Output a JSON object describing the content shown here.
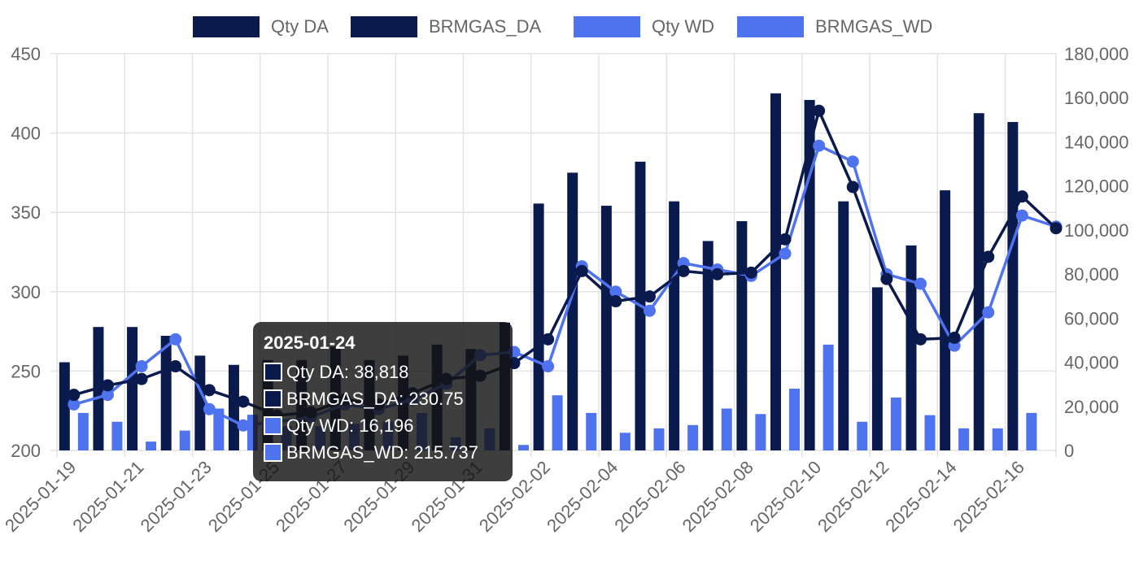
{
  "chart_data": {
    "type": "bar",
    "categories": [
      "2025-01-19",
      "2025-01-20",
      "2025-01-21",
      "2025-01-22",
      "2025-01-23",
      "2025-01-24",
      "2025-01-25",
      "2025-01-26",
      "2025-01-27",
      "2025-01-28",
      "2025-01-29",
      "2025-01-30",
      "2025-01-31",
      "2025-02-01",
      "2025-02-02",
      "2025-02-03",
      "2025-02-04",
      "2025-02-05",
      "2025-02-06",
      "2025-02-07",
      "2025-02-08",
      "2025-02-09",
      "2025-02-10",
      "2025-02-11",
      "2025-02-12",
      "2025-02-13",
      "2025-02-14",
      "2025-02-15",
      "2025-02-16",
      "2025-02-17"
    ],
    "x_tick_labels": [
      "2025-01-19",
      "2025-01-21",
      "2025-01-23",
      "2025-01-25",
      "2025-01-27",
      "2025-01-29",
      "2025-01-31",
      "2025-02-02",
      "2025-02-04",
      "2025-02-06",
      "2025-02-08",
      "2025-02-10",
      "2025-02-12",
      "2025-02-14",
      "2025-02-16"
    ],
    "series": [
      {
        "name": "Qty DA",
        "type": "bar",
        "axis": "right",
        "color": "#0b1a4d",
        "values": [
          40000,
          56000,
          56000,
          52000,
          43000,
          38818,
          41000,
          41000,
          47000,
          41000,
          43000,
          48000,
          46000,
          58000,
          112000,
          126000,
          111000,
          131000,
          113000,
          95000,
          104000,
          162000,
          159000,
          113000,
          74000,
          93000,
          118000,
          153000,
          149000,
          null
        ]
      },
      {
        "name": "BRMGAS_DA",
        "type": "line",
        "axis": "left",
        "color": "#0b1a4d",
        "values": [
          235,
          241,
          245,
          253,
          238,
          230.75,
          222,
          224,
          232,
          229,
          236,
          245,
          247,
          255,
          270,
          313,
          294,
          297,
          313,
          311,
          312,
          333,
          414,
          366,
          308,
          270,
          271,
          322,
          360,
          340
        ]
      },
      {
        "name": "Qty WD",
        "type": "bar",
        "axis": "right",
        "color": "#4f72ee",
        "values": [
          17000,
          13000,
          4000,
          9000,
          19000,
          16196,
          11000,
          11000,
          12000,
          13000,
          17000,
          6000,
          10000,
          2500,
          25000,
          17000,
          8000,
          10000,
          11500,
          19000,
          16500,
          28000,
          48000,
          13000,
          24000,
          16000,
          10000,
          10000,
          17000,
          null
        ]
      },
      {
        "name": "BRMGAS_WD",
        "type": "line",
        "axis": "left",
        "color": "#4f72ee",
        "values": [
          229,
          235,
          253,
          270,
          226,
          215.737,
          218,
          221,
          229,
          226,
          232,
          242,
          260,
          262,
          253,
          316,
          300,
          288,
          318,
          314,
          310,
          324,
          392,
          382,
          311,
          305,
          266,
          287,
          348,
          341
        ]
      }
    ],
    "y_left": {
      "min": 200,
      "max": 450,
      "ticks": [
        "200",
        "250",
        "300",
        "350",
        "400",
        "450"
      ]
    },
    "y_right": {
      "min": 0,
      "max": 180000,
      "ticks": [
        "0",
        "20,000",
        "40,000",
        "60,000",
        "80,000",
        "100,000",
        "120,000",
        "140,000",
        "160,000",
        "180,000"
      ]
    },
    "grid": true,
    "legend_position": "top",
    "tooltip": {
      "category_index": 5,
      "title": "2025-01-24",
      "lines": [
        "Qty DA: 38,818",
        "BRMGAS_DA: 230.75",
        "Qty WD: 16,196",
        "BRMGAS_WD: 215.737"
      ]
    }
  }
}
